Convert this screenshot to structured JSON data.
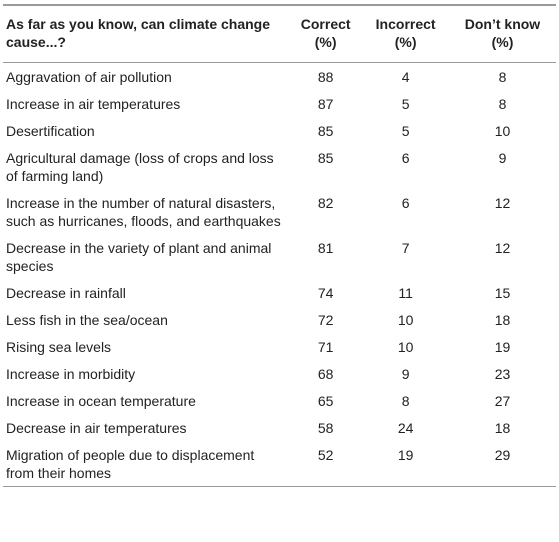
{
  "table": {
    "header": [
      "As far as you know, can climate change cause...?",
      "Correct\n(%)",
      "Incorrect\n(%)",
      "Don’t know\n(%)"
    ],
    "rows": [
      [
        "Aggravation of air pollution",
        88,
        4,
        8
      ],
      [
        "Increase in air temperatures",
        87,
        5,
        8
      ],
      [
        "Desertification",
        85,
        5,
        10
      ],
      [
        "Agricultural damage (loss of crops and loss of farming land)",
        85,
        6,
        9
      ],
      [
        "Increase in the number of natural disasters, such as hurricanes, floods, and earthquakes",
        82,
        6,
        12
      ],
      [
        "Decrease in the variety of plant and animal species",
        81,
        7,
        12
      ],
      [
        "Decrease in rainfall",
        74,
        11,
        15
      ],
      [
        "Less fish in the sea/ocean",
        72,
        10,
        18
      ],
      [
        "Rising sea levels",
        71,
        10,
        19
      ],
      [
        "Increase in morbidity",
        68,
        9,
        23
      ],
      [
        "Increase in ocean temperature",
        65,
        8,
        27
      ],
      [
        "Decrease in air temperatures",
        58,
        24,
        18
      ],
      [
        "Migration of people due to displacement from their homes",
        52,
        19,
        29
      ]
    ]
  }
}
